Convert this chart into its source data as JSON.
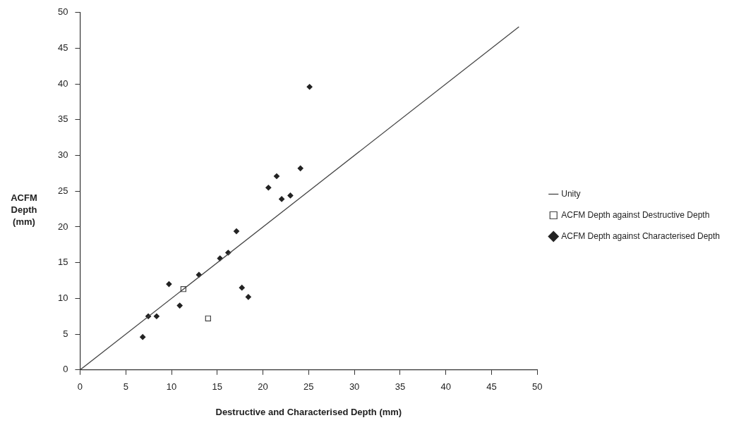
{
  "chart_data": {
    "type": "scatter",
    "xlabel": "Destructive and Characterised Depth (mm)",
    "ylabel": "ACFM Depth (mm)",
    "xlim": [
      0,
      50
    ],
    "xticks": [
      0,
      5,
      10,
      15,
      20,
      25,
      30,
      35,
      40,
      45,
      50
    ],
    "ylim": [
      0,
      50
    ],
    "yticks": [
      0,
      5,
      10,
      15,
      20,
      25,
      30,
      35,
      40,
      45,
      50
    ],
    "grid": false,
    "legend": "right",
    "series": [
      {
        "name": "Unity",
        "type": "line",
        "color": "#444444",
        "marker": "none",
        "line_style": "solid",
        "x": [
          0,
          48
        ],
        "values": [
          0,
          48
        ]
      },
      {
        "name": "ACFM Depth against Destructive Depth",
        "color": "#444444",
        "marker": "square",
        "x": [
          11.3,
          14.0
        ],
        "values": [
          11.3,
          7.2
        ]
      },
      {
        "name": "ACFM Depth against Characterised Depth",
        "color": "#222222",
        "marker": "diamond",
        "x": [
          6.85,
          7.46,
          8.37,
          9.72,
          10.9,
          13.0,
          15.3,
          16.2,
          17.1,
          17.7,
          18.4,
          20.6,
          21.5,
          22.05,
          23.0,
          24.1,
          25.1
        ],
        "values": [
          4.6,
          7.5,
          7.5,
          12.0,
          9.0,
          13.3,
          15.6,
          16.4,
          19.4,
          11.5,
          10.2,
          25.5,
          27.1,
          23.9,
          24.4,
          28.2,
          39.6
        ]
      }
    ]
  }
}
